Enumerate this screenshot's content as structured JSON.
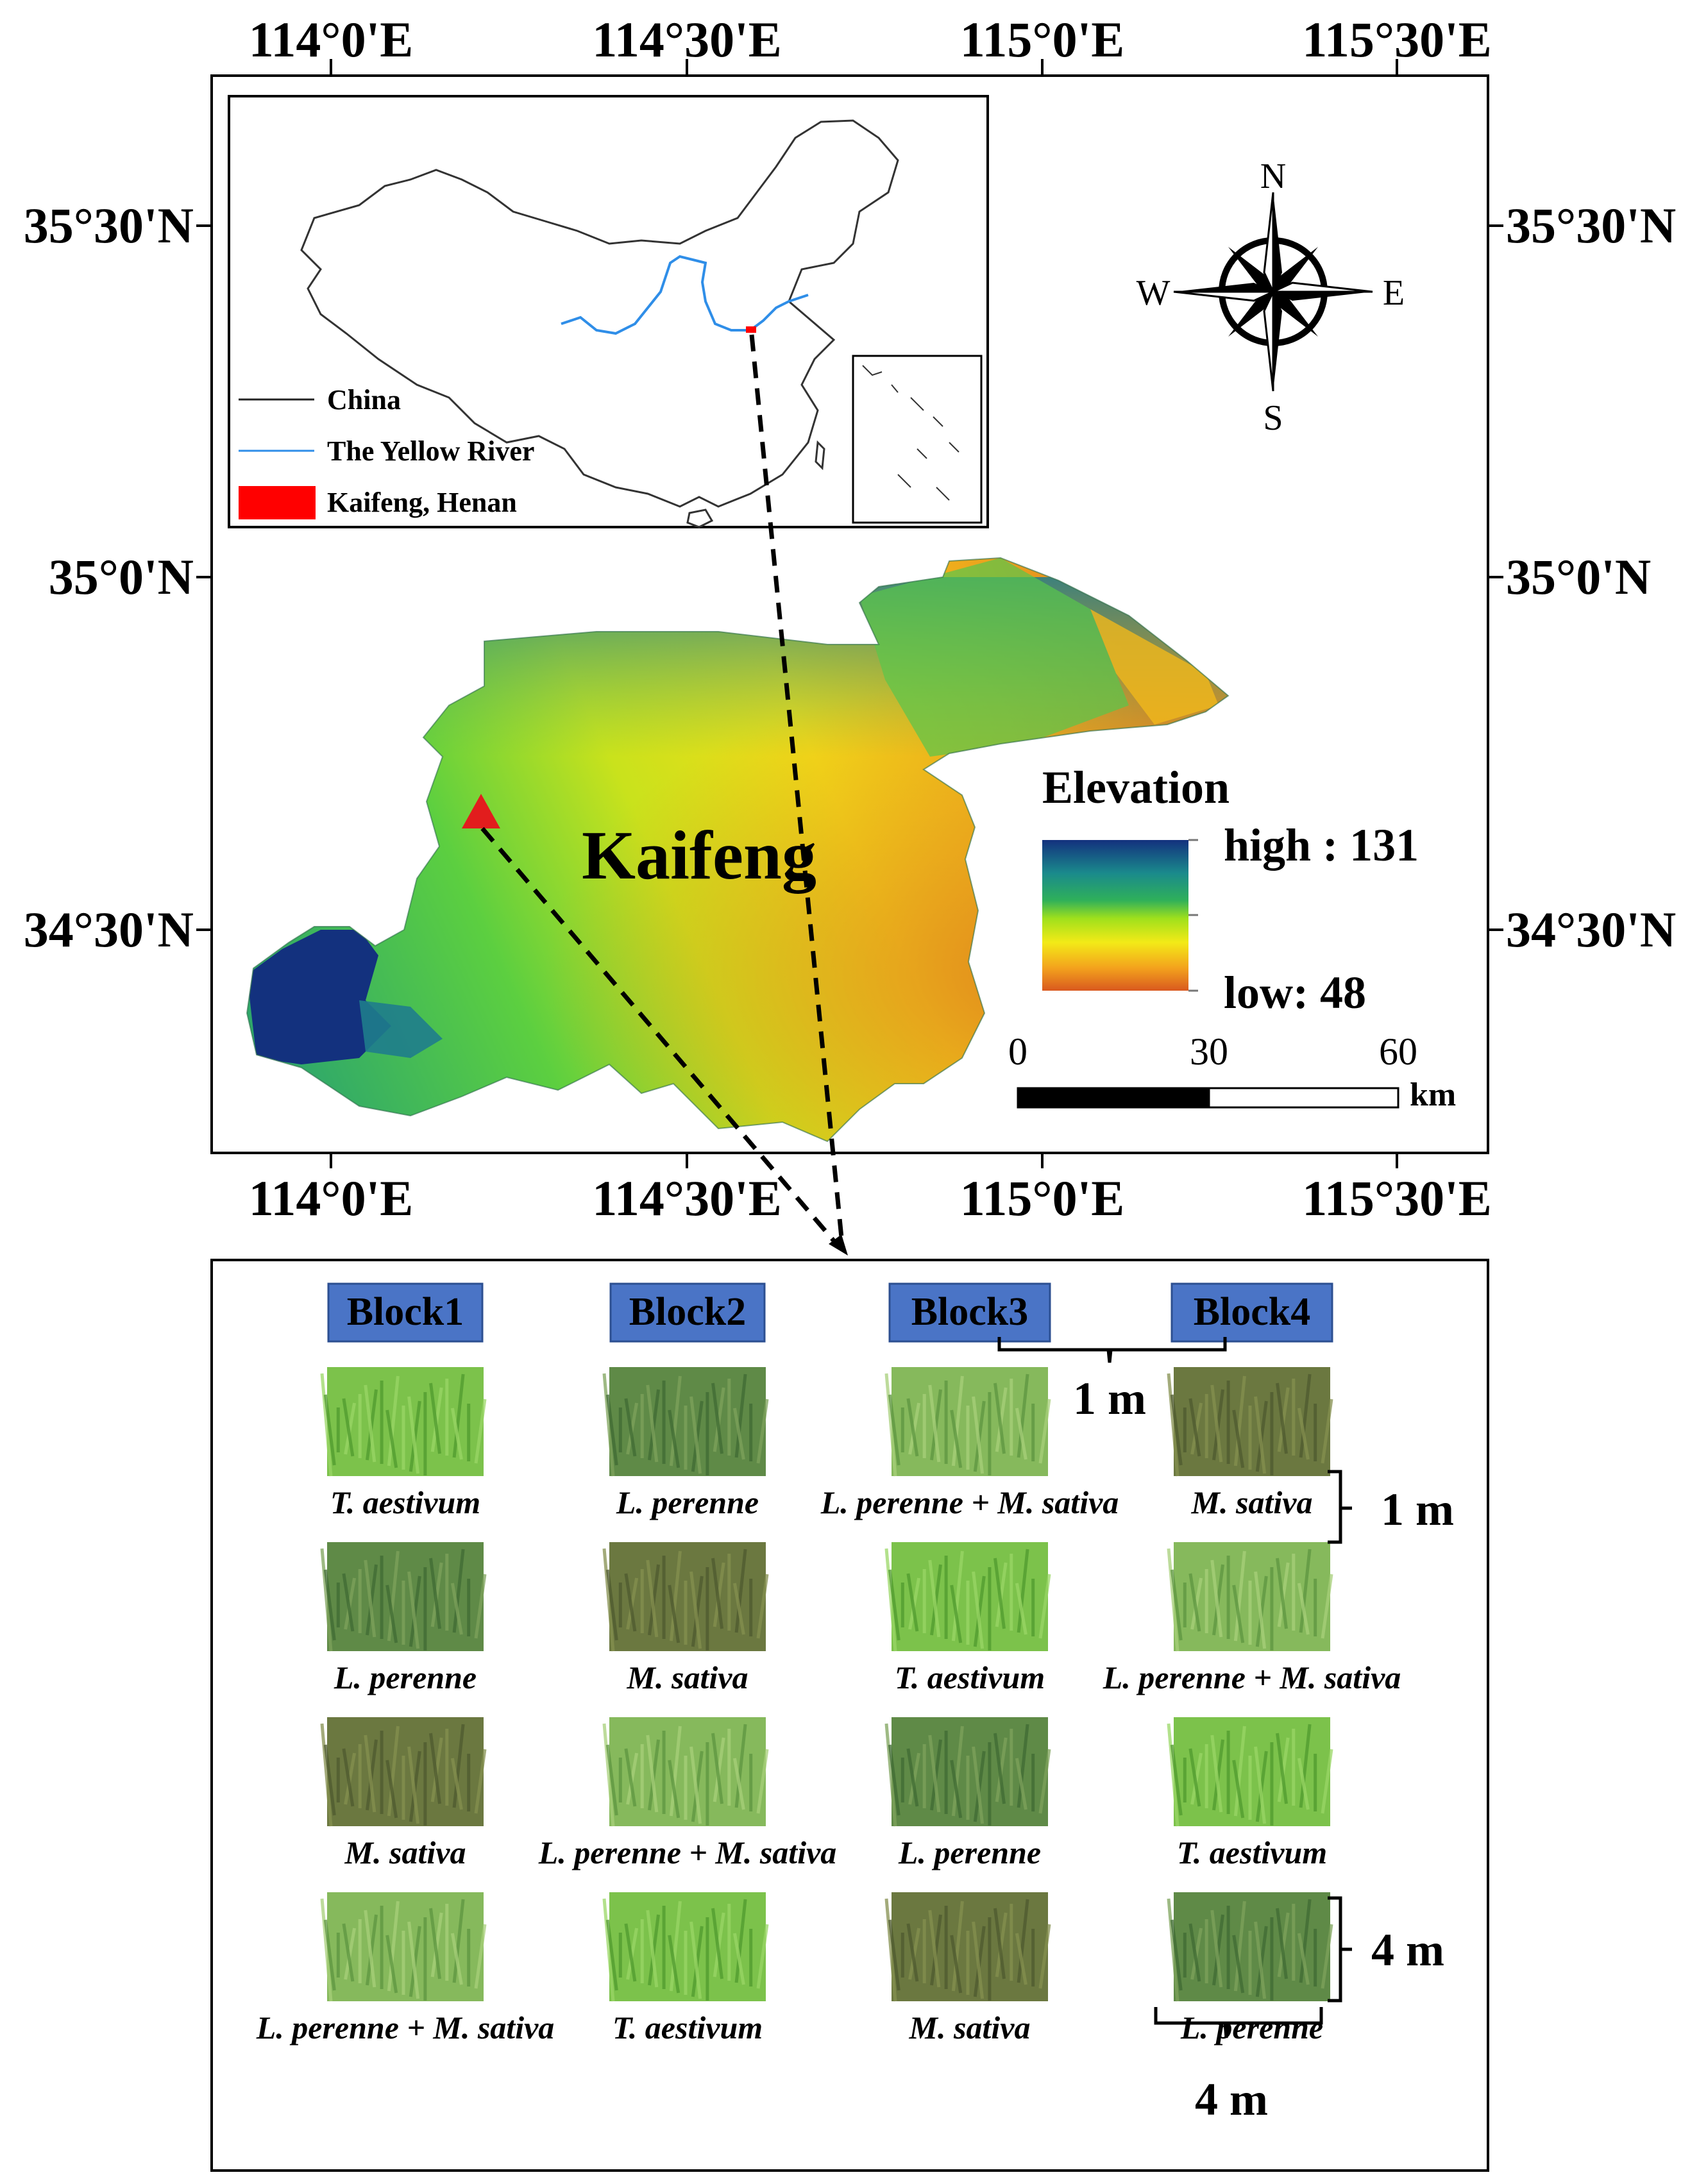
{
  "map": {
    "lon_ticks_top": [
      "114°0'E",
      "114°30'E",
      "115°0'E",
      "115°30'E"
    ],
    "lon_ticks_bottom": [
      "114°0'E",
      "114°30'E",
      "115°0'E",
      "115°30'E"
    ],
    "lat_ticks_left": [
      "35°30'N",
      "35°0'N",
      "34°30'N"
    ],
    "lat_ticks_right": [
      "35°30'N",
      "35°0'N",
      "34°30'N"
    ],
    "region_label": "Kaifeng",
    "compass": {
      "n": "N",
      "s": "S",
      "e": "E",
      "w": "W"
    },
    "elevation_legend": {
      "title": "Elevation",
      "high_label": "high : 131",
      "low_label": "low: 48",
      "high": 131,
      "low": 48,
      "gradient": [
        "#13317e",
        "#1a8a8c",
        "#2fb05a",
        "#9fe01c",
        "#f3ea17",
        "#f3a21d",
        "#d9591e"
      ]
    },
    "scale_bar": {
      "labels": [
        "0",
        "30",
        "60"
      ],
      "unit": "km"
    },
    "inset": {
      "legend": [
        {
          "label": "China",
          "color": "#222222"
        },
        {
          "label": "The Yellow River",
          "color": "#2f8ee8"
        },
        {
          "label": "Kaifeng, Henan",
          "color": "#ff0000"
        }
      ]
    },
    "site_marker_color": "#e21d1d"
  },
  "layout_panel": {
    "blocks": [
      "Block1",
      "Block2",
      "Block3",
      "Block4"
    ],
    "block_color": "#4a74c6",
    "rows": [
      [
        "T. aestivum",
        "L. perenne",
        "L. perenne + M. sativa",
        "M. sativa"
      ],
      [
        "L. perenne",
        "M. sativa",
        "T. aestivum",
        "L. perenne + M. sativa"
      ],
      [
        "M. sativa",
        "L. perenne + M. sativa",
        "L. perenne",
        "T. aestivum"
      ],
      [
        "L. perenne + M. sativa",
        "T. aestivum",
        "M. sativa",
        "L. perenne"
      ]
    ],
    "dimensions": {
      "block_gap": "1 m",
      "row_gap": "1 m",
      "plot_height": "4 m",
      "plot_width": "4 m"
    }
  }
}
